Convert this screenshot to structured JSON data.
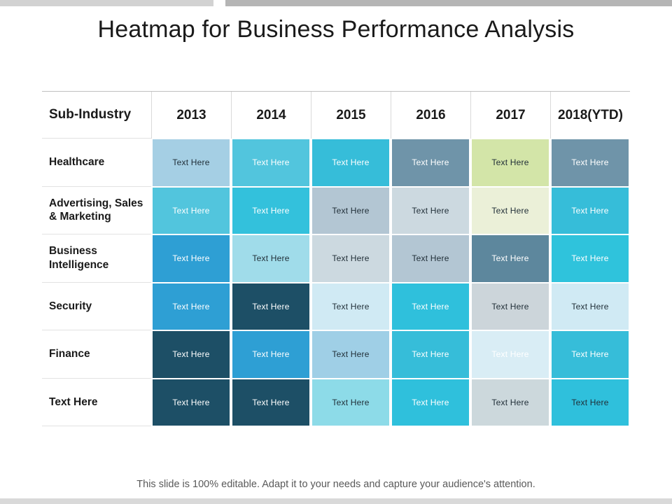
{
  "slide": {
    "title": "Heatmap for Business Performance Analysis",
    "footer_note": "This slide is 100% editable. Adapt it to your needs and capture your audience's attention."
  },
  "colors": {
    "dark_text": "#1f2d36",
    "light_text": "#ffffff",
    "top_bar_left": "#d2d2d2",
    "top_bar_right": "#b5b5b5",
    "bottom_bar": "#d9d9d9",
    "table_top_border": "#bfbfbf"
  },
  "chart_data": {
    "type": "heatmap",
    "title": "Heatmap for Business Performance Analysis",
    "corner_header": "Sub-Industry",
    "columns": [
      "2013",
      "2014",
      "2015",
      "2016",
      "2017",
      "2018(YTD)"
    ],
    "cell_label": "Text Here",
    "rows": [
      {
        "label": "Healthcare",
        "cells": [
          {
            "label": "Text Here",
            "bg": "#a5cfe4",
            "fg": "dark"
          },
          {
            "label": "Text Here",
            "bg": "#52c5dd",
            "fg": "light"
          },
          {
            "label": "Text Here",
            "bg": "#36bdd9",
            "fg": "light"
          },
          {
            "label": "Text Here",
            "bg": "#6f94a9",
            "fg": "light"
          },
          {
            "label": "Text Here",
            "bg": "#d3e5a8",
            "fg": "dark"
          },
          {
            "label": "Text Here",
            "bg": "#6f94a9",
            "fg": "light"
          }
        ]
      },
      {
        "label": "Advertising, Sales & Marketing",
        "cells": [
          {
            "label": "Text Here",
            "bg": "#52c5dd",
            "fg": "light"
          },
          {
            "label": "Text Here",
            "bg": "#33c1dc",
            "fg": "light"
          },
          {
            "label": "Text Here",
            "bg": "#b3c6d3",
            "fg": "dark"
          },
          {
            "label": "Text Here",
            "bg": "#ccd9e0",
            "fg": "dark"
          },
          {
            "label": "Text Here",
            "bg": "#ebf0d8",
            "fg": "dark"
          },
          {
            "label": "Text Here",
            "bg": "#36bdd9",
            "fg": "light"
          }
        ]
      },
      {
        "label": "Business Intelligence",
        "cells": [
          {
            "label": "Text Here",
            "bg": "#2e9fd4",
            "fg": "light"
          },
          {
            "label": "Text Here",
            "bg": "#a0dcea",
            "fg": "dark"
          },
          {
            "label": "Text Here",
            "bg": "#ccd9e0",
            "fg": "dark"
          },
          {
            "label": "Text Here",
            "bg": "#b3c6d3",
            "fg": "dark"
          },
          {
            "label": "Text Here",
            "bg": "#5d879d",
            "fg": "light"
          },
          {
            "label": "Text Here",
            "bg": "#2fc3dc",
            "fg": "light"
          }
        ]
      },
      {
        "label": "Security",
        "cells": [
          {
            "label": "Text Here",
            "bg": "#2e9fd4",
            "fg": "light"
          },
          {
            "label": "Text Here",
            "bg": "#1d4f66",
            "fg": "light"
          },
          {
            "label": "Text Here",
            "bg": "#d0eaf4",
            "fg": "dark"
          },
          {
            "label": "Text Here",
            "bg": "#2fc0dc",
            "fg": "light"
          },
          {
            "label": "Text Here",
            "bg": "#ccd5da",
            "fg": "dark"
          },
          {
            "label": "Text Here",
            "bg": "#d0eaf4",
            "fg": "dark"
          }
        ]
      },
      {
        "label": "Finance",
        "cells": [
          {
            "label": "Text Here",
            "bg": "#1d4f66",
            "fg": "light"
          },
          {
            "label": "Text Here",
            "bg": "#2e9fd4",
            "fg": "light"
          },
          {
            "label": "Text Here",
            "bg": "#9fcfe6",
            "fg": "dark"
          },
          {
            "label": "Text Here",
            "bg": "#36bdd9",
            "fg": "light"
          },
          {
            "label": "Text Here",
            "bg": "#d9edf5",
            "fg": "light"
          },
          {
            "label": "Text Here",
            "bg": "#36bdd9",
            "fg": "light"
          }
        ]
      },
      {
        "label": "Text Here",
        "cells": [
          {
            "label": "Text Here",
            "bg": "#1d4f66",
            "fg": "light"
          },
          {
            "label": "Text Here",
            "bg": "#1d4f66",
            "fg": "light"
          },
          {
            "label": "Text Here",
            "bg": "#8ddbe8",
            "fg": "dark"
          },
          {
            "label": "Text Here",
            "bg": "#2fc0dc",
            "fg": "light"
          },
          {
            "label": "Text Here",
            "bg": "#ccd8dc",
            "fg": "dark"
          },
          {
            "label": "Text Here",
            "bg": "#2fc0dc",
            "fg": "dark"
          }
        ]
      }
    ]
  }
}
